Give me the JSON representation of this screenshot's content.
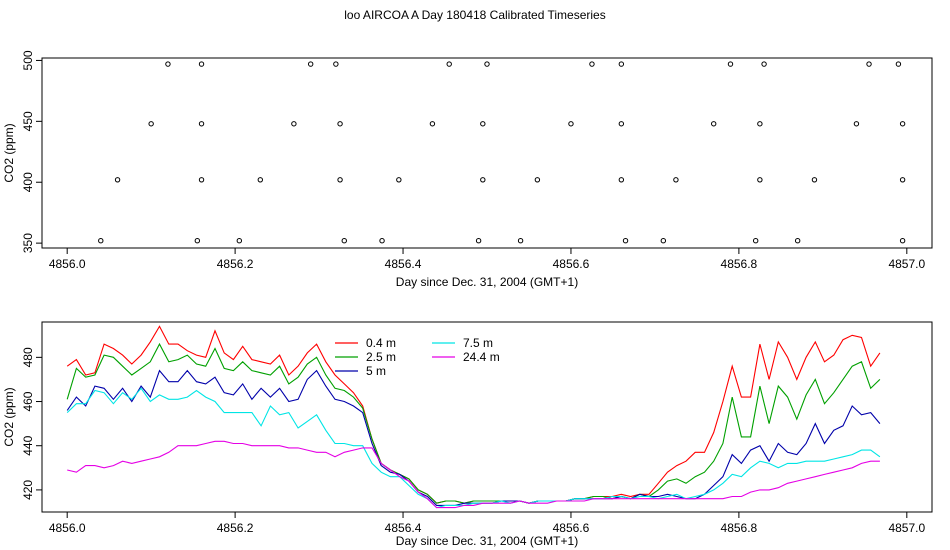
{
  "title": "loo AIRCOA A  Day 180418  Calibrated Timeseries",
  "chart_data": [
    {
      "type": "scatter",
      "xlabel": "Day since Dec. 31, 2004 (GMT+1)",
      "ylabel": "CO2 (ppm)",
      "xlim": [
        4855.97,
        4857.03
      ],
      "ylim": [
        346,
        502
      ],
      "x_ticks": [
        "4856.0",
        "4856.2",
        "4856.4",
        "4856.6",
        "4856.8",
        "4857.0"
      ],
      "y_ticks": [
        "350",
        "400",
        "450",
        "500"
      ],
      "grid": false,
      "series": [
        {
          "color": "#000000",
          "points": [
            [
              4856.04,
              352
            ],
            [
              4856.06,
              402
            ],
            [
              4856.1,
              448
            ],
            [
              4856.12,
              497
            ],
            [
              4856.155,
              352
            ],
            [
              4856.16,
              402
            ],
            [
              4856.16,
              448
            ],
            [
              4856.16,
              497
            ],
            [
              4856.205,
              352
            ],
            [
              4856.23,
              402
            ],
            [
              4856.27,
              448
            ],
            [
              4856.29,
              497
            ],
            [
              4856.32,
              497
            ],
            [
              4856.325,
              448
            ],
            [
              4856.325,
              402
            ],
            [
              4856.33,
              352
            ],
            [
              4856.375,
              352
            ],
            [
              4856.395,
              402
            ],
            [
              4856.435,
              448
            ],
            [
              4856.455,
              497
            ],
            [
              4856.49,
              352
            ],
            [
              4856.495,
              402
            ],
            [
              4856.495,
              448
            ],
            [
              4856.5,
              497
            ],
            [
              4856.54,
              352
            ],
            [
              4856.56,
              402
            ],
            [
              4856.6,
              448
            ],
            [
              4856.625,
              497
            ],
            [
              4856.66,
              497
            ],
            [
              4856.66,
              448
            ],
            [
              4856.66,
              402
            ],
            [
              4856.665,
              352
            ],
            [
              4856.71,
              352
            ],
            [
              4856.725,
              402
            ],
            [
              4856.77,
              448
            ],
            [
              4856.79,
              497
            ],
            [
              4856.82,
              352
            ],
            [
              4856.825,
              402
            ],
            [
              4856.825,
              448
            ],
            [
              4856.83,
              497
            ],
            [
              4856.87,
              352
            ],
            [
              4856.89,
              402
            ],
            [
              4856.94,
              448
            ],
            [
              4856.955,
              497
            ],
            [
              4856.99,
              497
            ],
            [
              4856.995,
              448
            ],
            [
              4856.995,
              402
            ],
            [
              4856.995,
              352
            ]
          ]
        }
      ]
    },
    {
      "type": "line",
      "xlabel": "Day since Dec. 31, 2004 (GMT+1)",
      "ylabel": "CO2 (ppm)",
      "xlim": [
        4855.97,
        4857.03
      ],
      "ylim": [
        410,
        496
      ],
      "x_ticks": [
        "4856.0",
        "4856.2",
        "4856.4",
        "4856.6",
        "4856.8",
        "4857.0"
      ],
      "y_ticks": [
        "420",
        "440",
        "460",
        "480"
      ],
      "grid": false,
      "legend_position": "top-left",
      "series": [
        {
          "name": "0.4 m",
          "color": "#ff0000",
          "values": [
            476,
            479,
            472,
            473,
            486,
            484,
            481,
            477,
            481,
            487,
            494,
            486,
            486,
            483,
            481,
            480,
            492,
            482,
            479,
            485,
            479,
            478,
            477,
            481,
            472,
            476,
            482,
            486,
            478,
            472,
            468,
            464,
            458,
            443,
            432,
            429,
            427,
            425,
            420,
            418,
            414,
            415,
            415,
            414,
            415,
            415,
            415,
            415,
            415,
            415,
            414,
            415,
            415,
            415,
            415,
            416,
            416,
            417,
            417,
            417,
            418,
            417,
            418,
            418,
            423,
            428,
            431,
            433,
            437,
            437,
            446,
            460,
            476,
            462,
            462,
            486,
            470,
            487,
            480,
            470,
            480,
            487,
            478,
            481,
            488,
            490,
            489,
            476,
            482
          ]
        },
        {
          "name": "2.5 m",
          "color": "#00a000",
          "values": [
            461,
            475,
            471,
            472,
            481,
            480,
            476,
            472,
            475,
            478,
            486,
            478,
            479,
            481,
            477,
            476,
            484,
            475,
            474,
            478,
            474,
            473,
            472,
            476,
            468,
            471,
            477,
            480,
            472,
            466,
            465,
            462,
            457,
            443,
            432,
            429,
            427,
            425,
            420,
            418,
            414,
            415,
            415,
            414,
            415,
            415,
            415,
            415,
            415,
            415,
            414,
            415,
            415,
            415,
            415,
            416,
            416,
            417,
            417,
            416,
            417,
            416,
            418,
            417,
            420,
            424,
            425,
            423,
            426,
            428,
            433,
            441,
            462,
            444,
            444,
            467,
            450,
            467,
            462,
            452,
            463,
            470,
            459,
            464,
            470,
            476,
            478,
            466,
            470
          ]
        },
        {
          "name": "5 m",
          "color": "#0000aa",
          "values": [
            456,
            462,
            458,
            467,
            466,
            461,
            466,
            460,
            467,
            462,
            474,
            469,
            469,
            474,
            469,
            468,
            471,
            464,
            463,
            468,
            461,
            466,
            462,
            466,
            460,
            461,
            470,
            474,
            467,
            461,
            460,
            458,
            455,
            441,
            431,
            428,
            427,
            424,
            419,
            417,
            413,
            413,
            413,
            414,
            414,
            414,
            414,
            415,
            415,
            415,
            414,
            415,
            415,
            415,
            415,
            416,
            416,
            416,
            416,
            416,
            417,
            416,
            418,
            417,
            417,
            418,
            417,
            416,
            416,
            418,
            422,
            426,
            436,
            432,
            438,
            440,
            433,
            441,
            437,
            436,
            441,
            450,
            441,
            447,
            449,
            458,
            454,
            455,
            450
          ]
        },
        {
          "name": "7.5 m",
          "color": "#00e5e5",
          "values": [
            455,
            459,
            459,
            465,
            464,
            459,
            464,
            461,
            466,
            460,
            463,
            461,
            461,
            462,
            465,
            462,
            460,
            455,
            455,
            455,
            455,
            449,
            458,
            454,
            455,
            448,
            451,
            454,
            447,
            441,
            441,
            440,
            440,
            432,
            428,
            426,
            426,
            422,
            418,
            416,
            412,
            413,
            413,
            413,
            414,
            414,
            414,
            415,
            414,
            415,
            414,
            415,
            415,
            415,
            415,
            416,
            416,
            416,
            416,
            417,
            417,
            416,
            417,
            417,
            416,
            417,
            418,
            416,
            417,
            418,
            420,
            423,
            427,
            426,
            430,
            433,
            432,
            430,
            432,
            432,
            433,
            433,
            433,
            434,
            435,
            436,
            438,
            438,
            435
          ]
        },
        {
          "name": "24.4 m",
          "color": "#e500e5",
          "values": [
            429,
            428,
            431,
            431,
            430,
            431,
            433,
            432,
            433,
            434,
            435,
            437,
            440,
            440,
            440,
            441,
            442,
            442,
            441,
            441,
            440,
            440,
            440,
            440,
            439,
            439,
            438,
            437,
            437,
            435,
            437,
            438,
            439,
            439,
            432,
            429,
            426,
            424,
            419,
            416,
            412,
            412,
            412,
            413,
            413,
            414,
            414,
            414,
            414,
            415,
            414,
            414,
            414,
            415,
            415,
            415,
            415,
            416,
            416,
            416,
            416,
            416,
            416,
            416,
            416,
            416,
            416,
            416,
            416,
            416,
            416,
            416,
            417,
            417,
            419,
            420,
            420,
            421,
            423,
            424,
            425,
            426,
            427,
            428,
            429,
            430,
            432,
            433,
            433
          ]
        }
      ]
    }
  ]
}
